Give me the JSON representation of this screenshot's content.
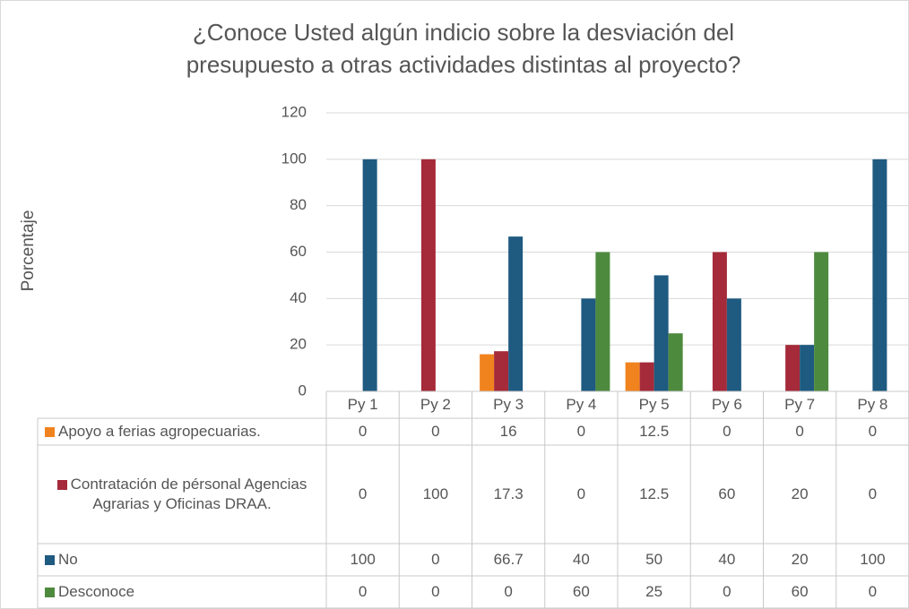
{
  "chart_data": {
    "type": "bar",
    "title": "¿Conoce Usted algún indicio sobre la desviación del presupuesto a otras actividades distintas al proyecto?",
    "y_label": "Porcentaje",
    "categories": [
      "Py 1",
      "Py 2",
      "Py 3",
      "Py 4",
      "Py 5",
      "Py 6",
      "Py 7",
      "Py 8"
    ],
    "series": [
      {
        "name": "Apoyo a ferias agropecuarias.",
        "color": "#f0831e",
        "values": [
          0,
          0,
          16,
          0,
          12.5,
          0,
          0,
          0
        ]
      },
      {
        "name": "Contratación de pérsonal Agencias Agrarias y Oficinas DRAA.",
        "color": "#a52a3a",
        "values": [
          0,
          100,
          17.3,
          0,
          12.5,
          60,
          20,
          0
        ]
      },
      {
        "name": "No",
        "color": "#1f5a80",
        "values": [
          100,
          0,
          66.7,
          40,
          50,
          40,
          20,
          100
        ]
      },
      {
        "name": "Desconoce",
        "color": "#4e8a3e",
        "values": [
          0,
          0,
          0,
          60,
          25,
          0,
          60,
          0
        ]
      }
    ],
    "ylim": [
      0,
      120
    ],
    "yticks": [
      0,
      20,
      40,
      60,
      80,
      100,
      120
    ],
    "grid": true,
    "legend": "table"
  }
}
